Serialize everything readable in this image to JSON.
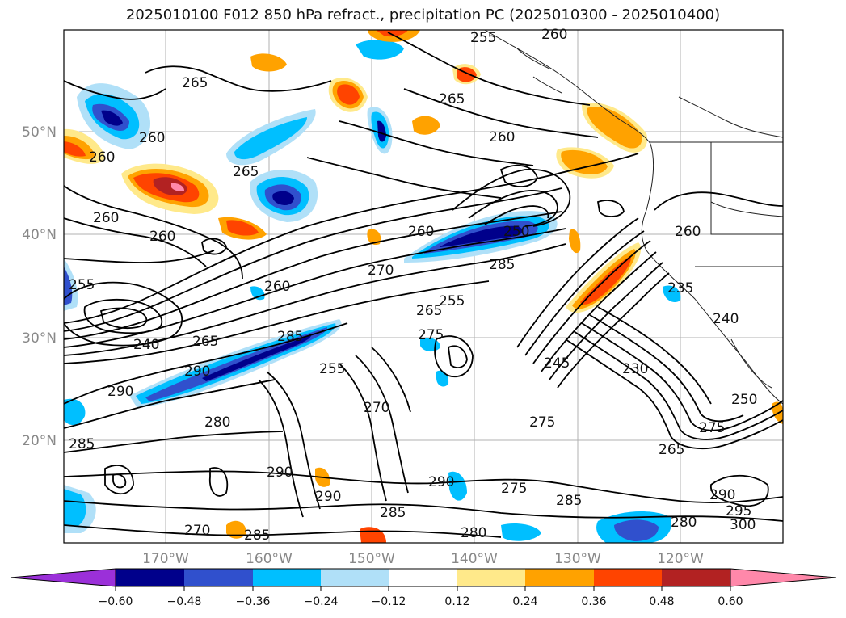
{
  "title": "2025010100 F012 850 hPa refract., precipitation PC (2025010300 - 2025010400)",
  "lat_labels": [
    "50°N",
    "40°N",
    "30°N",
    "20°N"
  ],
  "lon_labels": [
    "170°W",
    "160°W",
    "150°W",
    "140°W",
    "130°W",
    "120°W"
  ],
  "colorbar": {
    "ticks": [
      "−0.60",
      "−0.48",
      "−0.36",
      "−0.24",
      "−0.12",
      "0.12",
      "0.24",
      "0.36",
      "0.48",
      "0.60"
    ],
    "colors": [
      "#9b30d9",
      "#00008b",
      "#3050cd",
      "#00bfff",
      "#b0e0f8",
      "#ffffff",
      "#ffe98a",
      "#ffa200",
      "#ff4400",
      "#b22222",
      "#ff88aa"
    ]
  },
  "contour_labels": [
    {
      "t": "265"
    },
    {
      "t": "255"
    },
    {
      "t": "260"
    },
    {
      "t": "260"
    },
    {
      "t": "265"
    },
    {
      "t": "260"
    },
    {
      "t": "265"
    },
    {
      "t": "260"
    },
    {
      "t": "260"
    },
    {
      "t": "260"
    },
    {
      "t": "270"
    },
    {
      "t": "250"
    },
    {
      "t": "285"
    },
    {
      "t": "260"
    },
    {
      "t": "255"
    },
    {
      "t": "260"
    },
    {
      "t": "240"
    },
    {
      "t": "265"
    },
    {
      "t": "285"
    },
    {
      "t": "255"
    },
    {
      "t": "275"
    },
    {
      "t": "265"
    },
    {
      "t": "290"
    },
    {
      "t": "290"
    },
    {
      "t": "255"
    },
    {
      "t": "270"
    },
    {
      "t": "285"
    },
    {
      "t": "280"
    },
    {
      "t": "290"
    },
    {
      "t": "290"
    },
    {
      "t": "290"
    },
    {
      "t": "285"
    },
    {
      "t": "245"
    },
    {
      "t": "230"
    },
    {
      "t": "250"
    },
    {
      "t": "275"
    },
    {
      "t": "265"
    },
    {
      "t": "275"
    },
    {
      "t": "290"
    },
    {
      "t": "295"
    },
    {
      "t": "300"
    },
    {
      "t": "280"
    },
    {
      "t": "285"
    },
    {
      "t": "280"
    },
    {
      "t": "270"
    },
    {
      "t": "285"
    },
    {
      "t": "275"
    },
    {
      "t": "240"
    },
    {
      "t": "260"
    },
    {
      "t": "235"
    }
  ]
}
